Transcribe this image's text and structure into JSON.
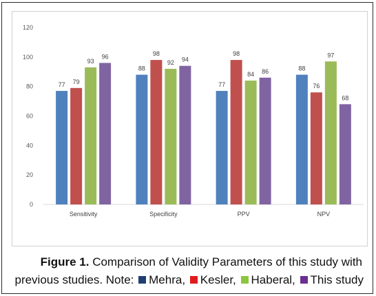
{
  "chart_data": {
    "type": "bar",
    "categories": [
      "Sensitivity",
      "Specificity",
      "PPV",
      "NPV"
    ],
    "series": [
      {
        "name": "Mehra",
        "color": "#4f81bd",
        "values": [
          77,
          88,
          77,
          88
        ]
      },
      {
        "name": "Kesler",
        "color": "#c0504d",
        "values": [
          79,
          98,
          98,
          76
        ]
      },
      {
        "name": "Haberal",
        "color": "#9bbb59",
        "values": [
          93,
          92,
          84,
          97
        ]
      },
      {
        "name": "This study",
        "color": "#8064a2",
        "values": [
          96,
          94,
          86,
          68
        ]
      }
    ],
    "ylim": [
      0,
      120
    ],
    "yticks": [
      0,
      20,
      40,
      60,
      80,
      100,
      120
    ],
    "grid": false,
    "data_labels": true
  },
  "caption": {
    "figure_label": "Figure 1.",
    "text": "Comparison of Validity Parameters of this study with",
    "note_prefix": "previous studies. Note:",
    "legend": [
      {
        "label": "Mehra,",
        "color": "#1f3f73"
      },
      {
        "label": "Kesler,",
        "color": "#e01b1b"
      },
      {
        "label": "Haberal,",
        "color": "#8cc63f"
      },
      {
        "label": "This study",
        "color": "#6a2f8f"
      }
    ]
  }
}
